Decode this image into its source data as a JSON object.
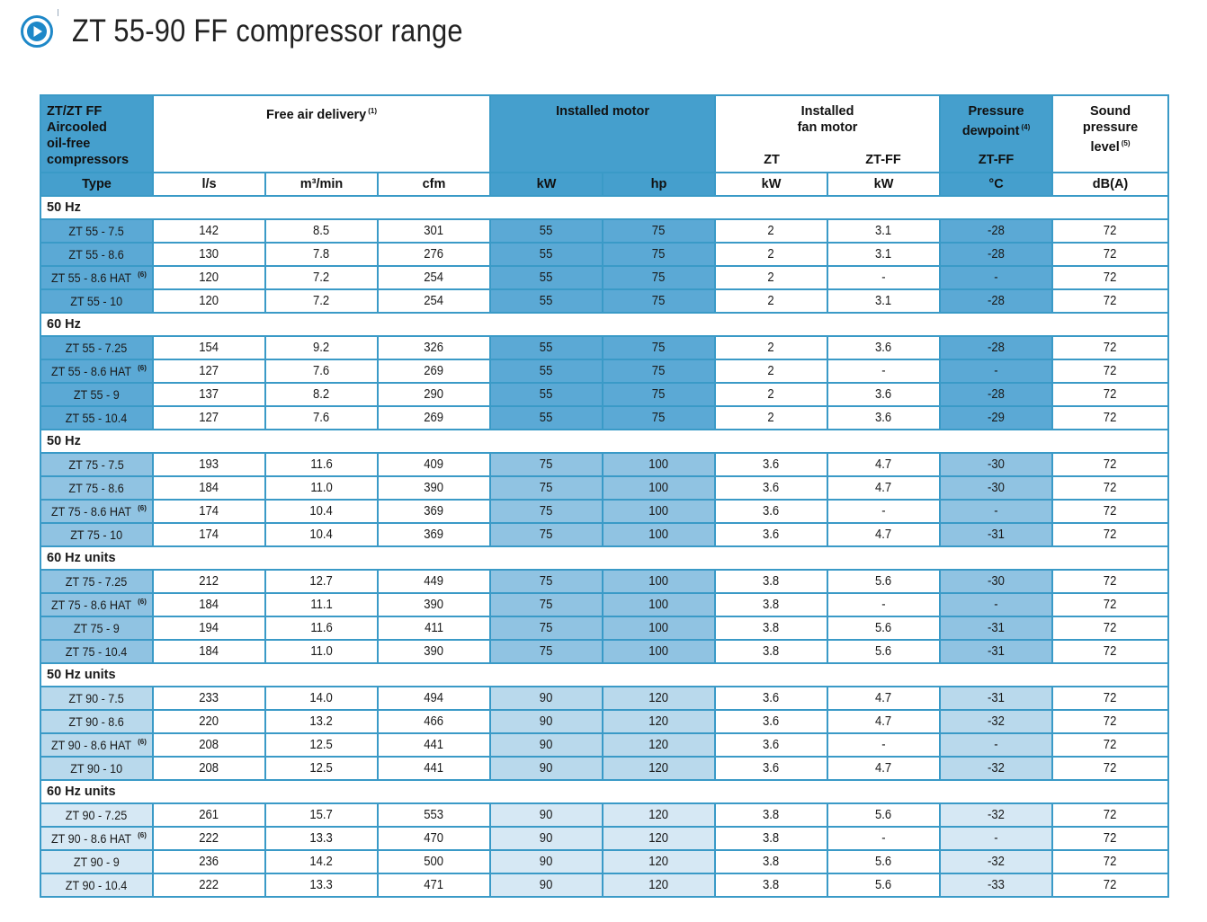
{
  "page": {
    "title": "ZT 55-90 FF compressor range"
  },
  "table": {
    "header": {
      "type_col": [
        "ZT/ZT FF",
        "Aircooled",
        "oil-free",
        "compressors"
      ],
      "type_label": "Type",
      "free_air": "Free air delivery",
      "free_air_note": "(1)",
      "free_air_units": [
        "l/s",
        "m³/min",
        "cfm"
      ],
      "installed_motor": "Installed motor",
      "installed_motor_units": [
        "kW",
        "hp"
      ],
      "fan_motor": [
        "Installed",
        "fan motor"
      ],
      "fan_sub": [
        "ZT",
        "ZT-FF"
      ],
      "fan_units": [
        "kW",
        "kW"
      ],
      "dewpoint": [
        "Pressure",
        "dewpoint"
      ],
      "dewpoint_note": "(4)",
      "dewpoint_sub": "ZT-FF",
      "dewpoint_unit": "°C",
      "sound": [
        "Sound",
        "pressure",
        "level"
      ],
      "sound_note": "(5)",
      "sound_unit": "dB(A)"
    },
    "groups": [
      {
        "label": "50 Hz",
        "rows": [
          {
            "type": "ZT 55 - 7.5",
            "note": "",
            "ls": "142",
            "m3": "8.5",
            "cfm": "301",
            "kw": "55",
            "hp": "75",
            "fan_zt": "2",
            "fan_ff": "3.1",
            "dew": "-28",
            "db": "72"
          },
          {
            "type": "ZT 55 - 8.6",
            "note": "",
            "ls": "130",
            "m3": "7.8",
            "cfm": "276",
            "kw": "55",
            "hp": "75",
            "fan_zt": "2",
            "fan_ff": "3.1",
            "dew": "-28",
            "db": "72"
          },
          {
            "type": "ZT 55 - 8.6 HAT",
            "note": "(6)",
            "ls": "120",
            "m3": "7.2",
            "cfm": "254",
            "kw": "55",
            "hp": "75",
            "fan_zt": "2",
            "fan_ff": "-",
            "dew": "-",
            "db": "72"
          },
          {
            "type": "ZT 55 - 10",
            "note": "",
            "ls": "120",
            "m3": "7.2",
            "cfm": "254",
            "kw": "55",
            "hp": "75",
            "fan_zt": "2",
            "fan_ff": "3.1",
            "dew": "-28",
            "db": "72"
          }
        ]
      },
      {
        "label": "60 Hz",
        "rows": [
          {
            "type": "ZT 55 - 7.25",
            "note": "",
            "ls": "154",
            "m3": "9.2",
            "cfm": "326",
            "kw": "55",
            "hp": "75",
            "fan_zt": "2",
            "fan_ff": "3.6",
            "dew": "-28",
            "db": "72"
          },
          {
            "type": "ZT 55 - 8.6 HAT",
            "note": "(6)",
            "ls": "127",
            "m3": "7.6",
            "cfm": "269",
            "kw": "55",
            "hp": "75",
            "fan_zt": "2",
            "fan_ff": "-",
            "dew": "-",
            "db": "72"
          },
          {
            "type": "ZT 55 - 9",
            "note": "",
            "ls": "137",
            "m3": "8.2",
            "cfm": "290",
            "kw": "55",
            "hp": "75",
            "fan_zt": "2",
            "fan_ff": "3.6",
            "dew": "-28",
            "db": "72"
          },
          {
            "type": "ZT 55 - 10.4",
            "note": "",
            "ls": "127",
            "m3": "7.6",
            "cfm": "269",
            "kw": "55",
            "hp": "75",
            "fan_zt": "2",
            "fan_ff": "3.6",
            "dew": "-29",
            "db": "72"
          }
        ]
      },
      {
        "label": "50 Hz",
        "rows": [
          {
            "type": "ZT 75 - 7.5",
            "note": "",
            "ls": "193",
            "m3": "11.6",
            "cfm": "409",
            "kw": "75",
            "hp": "100",
            "fan_zt": "3.6",
            "fan_ff": "4.7",
            "dew": "-30",
            "db": "72"
          },
          {
            "type": "ZT 75 - 8.6",
            "note": "",
            "ls": "184",
            "m3": "11.0",
            "cfm": "390",
            "kw": "75",
            "hp": "100",
            "fan_zt": "3.6",
            "fan_ff": "4.7",
            "dew": "-30",
            "db": "72"
          },
          {
            "type": "ZT 75 - 8.6 HAT",
            "note": "(6)",
            "ls": "174",
            "m3": "10.4",
            "cfm": "369",
            "kw": "75",
            "hp": "100",
            "fan_zt": "3.6",
            "fan_ff": "-",
            "dew": "-",
            "db": "72"
          },
          {
            "type": "ZT 75 - 10",
            "note": "",
            "ls": "174",
            "m3": "10.4",
            "cfm": "369",
            "kw": "75",
            "hp": "100",
            "fan_zt": "3.6",
            "fan_ff": "4.7",
            "dew": "-31",
            "db": "72"
          }
        ]
      },
      {
        "label": "60 Hz units",
        "rows": [
          {
            "type": "ZT 75 - 7.25",
            "note": "",
            "ls": "212",
            "m3": "12.7",
            "cfm": "449",
            "kw": "75",
            "hp": "100",
            "fan_zt": "3.8",
            "fan_ff": "5.6",
            "dew": "-30",
            "db": "72"
          },
          {
            "type": "ZT 75 - 8.6 HAT",
            "note": "(6)",
            "ls": "184",
            "m3": "11.1",
            "cfm": "390",
            "kw": "75",
            "hp": "100",
            "fan_zt": "3.8",
            "fan_ff": "-",
            "dew": "-",
            "db": "72"
          },
          {
            "type": "ZT 75 - 9",
            "note": "",
            "ls": "194",
            "m3": "11.6",
            "cfm": "411",
            "kw": "75",
            "hp": "100",
            "fan_zt": "3.8",
            "fan_ff": "5.6",
            "dew": "-31",
            "db": "72"
          },
          {
            "type": "ZT 75 - 10.4",
            "note": "",
            "ls": "184",
            "m3": "11.0",
            "cfm": "390",
            "kw": "75",
            "hp": "100",
            "fan_zt": "3.8",
            "fan_ff": "5.6",
            "dew": "-31",
            "db": "72"
          }
        ]
      },
      {
        "label": "50 Hz units",
        "rows": [
          {
            "type": "ZT 90 - 7.5",
            "note": "",
            "ls": "233",
            "m3": "14.0",
            "cfm": "494",
            "kw": "90",
            "hp": "120",
            "fan_zt": "3.6",
            "fan_ff": "4.7",
            "dew": "-31",
            "db": "72"
          },
          {
            "type": "ZT 90 - 8.6",
            "note": "",
            "ls": "220",
            "m3": "13.2",
            "cfm": "466",
            "kw": "90",
            "hp": "120",
            "fan_zt": "3.6",
            "fan_ff": "4.7",
            "dew": "-32",
            "db": "72"
          },
          {
            "type": "ZT 90 - 8.6 HAT",
            "note": "(6)",
            "ls": "208",
            "m3": "12.5",
            "cfm": "441",
            "kw": "90",
            "hp": "120",
            "fan_zt": "3.6",
            "fan_ff": "-",
            "dew": "-",
            "db": "72"
          },
          {
            "type": "ZT 90 - 10",
            "note": "",
            "ls": "208",
            "m3": "12.5",
            "cfm": "441",
            "kw": "90",
            "hp": "120",
            "fan_zt": "3.6",
            "fan_ff": "4.7",
            "dew": "-32",
            "db": "72"
          }
        ]
      },
      {
        "label": "60 Hz units",
        "rows": [
          {
            "type": "ZT 90 - 7.25",
            "note": "",
            "ls": "261",
            "m3": "15.7",
            "cfm": "553",
            "kw": "90",
            "hp": "120",
            "fan_zt": "3.8",
            "fan_ff": "5.6",
            "dew": "-32",
            "db": "72"
          },
          {
            "type": "ZT 90 - 8.6 HAT",
            "note": "(6)",
            "ls": "222",
            "m3": "13.3",
            "cfm": "470",
            "kw": "90",
            "hp": "120",
            "fan_zt": "3.8",
            "fan_ff": "-",
            "dew": "-",
            "db": "72"
          },
          {
            "type": "ZT 90 - 9",
            "note": "",
            "ls": "236",
            "m3": "14.2",
            "cfm": "500",
            "kw": "90",
            "hp": "120",
            "fan_zt": "3.8",
            "fan_ff": "5.6",
            "dew": "-32",
            "db": "72"
          },
          {
            "type": "ZT 90 - 10.4",
            "note": "",
            "ls": "222",
            "m3": "13.3",
            "cfm": "471",
            "kw": "90",
            "hp": "120",
            "fan_zt": "3.8",
            "fan_ff": "5.6",
            "dew": "-33",
            "db": "72"
          }
        ]
      }
    ]
  },
  "colors": {
    "border": "#3a9ac7",
    "header_blue": "#459fcd",
    "icon_blue": "#1e88c8"
  },
  "icons": {
    "title": "play-circle-icon"
  }
}
